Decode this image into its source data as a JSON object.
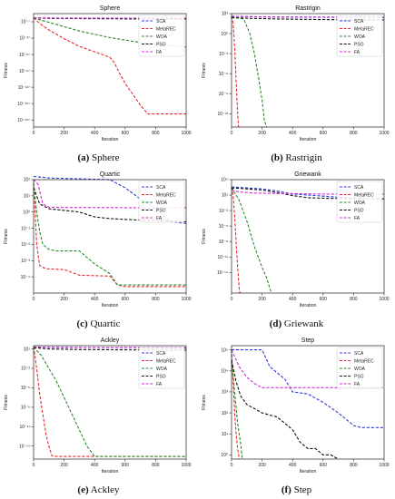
{
  "figure": {
    "panels": [
      {
        "id": "a",
        "letter": "(a)",
        "name": "Sphere"
      },
      {
        "id": "b",
        "letter": "(b)",
        "name": "Rastrigin"
      },
      {
        "id": "c",
        "letter": "(c)",
        "name": "Quartic"
      },
      {
        "id": "d",
        "letter": "(d)",
        "name": "Griewank"
      },
      {
        "id": "e",
        "letter": "(e)",
        "name": "Ackley"
      },
      {
        "id": "f",
        "letter": "(f)",
        "name": "Step"
      }
    ]
  },
  "colors": {
    "SCA": "#2b3bd9",
    "MetaREC": "#e8282b",
    "WOA": "#2a8a2a",
    "PSO": "#111111",
    "FA": "#d22bd2"
  },
  "chart_data": [
    {
      "type": "line",
      "title": "Sphere",
      "xlabel": "Iteration",
      "ylabel": "Fitness",
      "xlim": [
        0,
        1000
      ],
      "log_y": true,
      "ylim_log10": [
        -200,
        8
      ],
      "x_ticks": [
        0,
        200,
        400,
        600,
        800,
        1000
      ],
      "y_ticks": [
        {
          "v": -7,
          "label": "10⁻⁷"
        },
        {
          "v": -37,
          "label": "10⁻³⁷"
        },
        {
          "v": -67,
          "label": "10⁻⁶⁷"
        },
        {
          "v": -97,
          "label": "10⁻⁹⁷"
        },
        {
          "v": -127,
          "label": "10⁻¹²⁷"
        },
        {
          "v": -157,
          "label": "10⁻¹⁵⁷"
        },
        {
          "v": -187,
          "label": "10⁻¹⁸⁷"
        }
      ],
      "legend": "top-right",
      "grid": false,
      "series": [
        {
          "name": "SCA",
          "x": [
            0,
            100,
            300,
            500,
            700,
            1000
          ],
          "y": [
            0,
            -0.3,
            -0.6,
            -1,
            -1.3,
            -1.6
          ]
        },
        {
          "name": "MetaREC",
          "x": [
            0,
            40,
            100,
            200,
            300,
            400,
            450,
            500,
            530,
            560,
            600,
            650,
            700,
            750,
            780,
            1000
          ],
          "y": [
            0,
            -10,
            -22,
            -38,
            -52,
            -62,
            -67,
            -72,
            -82,
            -100,
            -120,
            -140,
            -160,
            -176,
            -176,
            -176
          ]
        },
        {
          "name": "WOA",
          "x": [
            0,
            50,
            150,
            300,
            500,
            700,
            900,
            1000
          ],
          "y": [
            0,
            -4,
            -12,
            -24,
            -36,
            -45,
            -51,
            -53
          ]
        },
        {
          "name": "PSO",
          "x": [
            0,
            100,
            300,
            600,
            1000
          ],
          "y": [
            0,
            -0.8,
            -1.2,
            -1.6,
            -2
          ]
        },
        {
          "name": "FA",
          "x": [
            0,
            200,
            500,
            1000
          ],
          "y": [
            0,
            -0.2,
            -0.3,
            -0.4
          ]
        }
      ]
    },
    {
      "type": "line",
      "title": "Rastrigin",
      "xlabel": "Iteration",
      "ylabel": "Fitness",
      "xlim": [
        0,
        1000
      ],
      "log_y": true,
      "ylim_log10": [
        -14,
        3
      ],
      "x_ticks": [
        0,
        200,
        400,
        600,
        800,
        1000
      ],
      "y_ticks": [
        {
          "v": 3,
          "label": "10³"
        },
        {
          "v": 0,
          "label": "10⁰"
        },
        {
          "v": -3,
          "label": "10⁻³"
        },
        {
          "v": -6,
          "label": "10⁻⁶"
        },
        {
          "v": -9,
          "label": "10⁻⁹"
        },
        {
          "v": -12,
          "label": "10⁻¹²"
        }
      ],
      "legend": "top-right",
      "grid": false,
      "series": [
        {
          "name": "SCA",
          "x": [
            0,
            100,
            300,
            600,
            1000
          ],
          "y": [
            2.6,
            2.55,
            2.5,
            2.45,
            2.4
          ]
        },
        {
          "name": "MetaREC",
          "x": [
            0,
            10,
            20,
            30,
            40,
            45,
            50
          ],
          "y": [
            2.6,
            1.5,
            -2,
            -7,
            -12,
            -14,
            -14
          ]
        },
        {
          "name": "WOA",
          "x": [
            0,
            80,
            120,
            150,
            180,
            200,
            215,
            230
          ],
          "y": [
            2.5,
            2.2,
            0,
            -3,
            -7,
            -10,
            -13,
            -14
          ]
        },
        {
          "name": "PSO",
          "x": [
            0,
            100,
            300,
            600,
            1000
          ],
          "y": [
            2.4,
            2.3,
            2.2,
            2.1,
            2.05
          ]
        },
        {
          "name": "FA",
          "x": [
            0,
            200,
            600,
            1000
          ],
          "y": [
            2.6,
            2.5,
            2.48,
            2.45
          ]
        }
      ]
    },
    {
      "type": "line",
      "title": "Quartic",
      "xlabel": "Iteration",
      "ylabel": "Fitness",
      "xlim": [
        0,
        1000
      ],
      "log_y": true,
      "ylim_log10": [
        -5,
        2
      ],
      "x_ticks": [
        0,
        200,
        400,
        600,
        800,
        1000
      ],
      "y_ticks": [
        {
          "v": 2,
          "label": "10²"
        },
        {
          "v": 1,
          "label": "10¹"
        },
        {
          "v": 0,
          "label": "10⁰"
        },
        {
          "v": -1,
          "label": "10⁻¹"
        },
        {
          "v": -2,
          "label": "10⁻²"
        },
        {
          "v": -3,
          "label": "10⁻³"
        },
        {
          "v": -4,
          "label": "10⁻⁴"
        }
      ],
      "legend": "top-right",
      "grid": false,
      "series": [
        {
          "name": "SCA",
          "x": [
            0,
            100,
            300,
            500,
            600,
            700,
            800,
            900,
            1000
          ],
          "y": [
            2.2,
            2.1,
            2.05,
            2.0,
            1.5,
            0.8,
            0.2,
            -0.6,
            -0.7
          ]
        },
        {
          "name": "MetaREC",
          "x": [
            0,
            10,
            20,
            40,
            80,
            200,
            300,
            500,
            550,
            600,
            1000
          ],
          "y": [
            1.8,
            0,
            -2,
            -3.3,
            -3.5,
            -3.55,
            -3.9,
            -3.95,
            -4.5,
            -4.6,
            -4.6
          ]
        },
        {
          "name": "WOA",
          "x": [
            0,
            20,
            40,
            60,
            100,
            150,
            300,
            400,
            500,
            550,
            1000
          ],
          "y": [
            1.8,
            0,
            -1.2,
            -2,
            -2.3,
            -2.4,
            -2.4,
            -3.2,
            -3.8,
            -4.5,
            -4.5
          ]
        },
        {
          "name": "PSO",
          "x": [
            0,
            20,
            40,
            100,
            200,
            300,
            400,
            500,
            600,
            700,
            800,
            900,
            1000
          ],
          "y": [
            1.5,
            1,
            0.5,
            0.2,
            0.1,
            0,
            -0.3,
            -0.4,
            -0.45,
            -0.5,
            -0.5,
            -0.55,
            -0.6
          ]
        },
        {
          "name": "FA",
          "x": [
            0,
            30,
            60,
            100,
            200,
            400,
            600,
            800,
            1000
          ],
          "y": [
            2.0,
            1.7,
            0.5,
            0.3,
            0.28,
            0.28,
            0.27,
            0.27,
            0.27
          ]
        }
      ]
    },
    {
      "type": "line",
      "title": "Griewank",
      "xlabel": "Iteration",
      "ylabel": "Fitness",
      "xlim": [
        0,
        1000
      ],
      "log_y": true,
      "ylim_log10": [
        -18,
        4
      ],
      "x_ticks": [
        0,
        200,
        400,
        600,
        800,
        1000
      ],
      "y_ticks": [
        {
          "v": 4,
          "label": "10⁴"
        },
        {
          "v": 1,
          "label": "10¹"
        },
        {
          "v": -2,
          "label": "10⁻²"
        },
        {
          "v": -5,
          "label": "10⁻⁵"
        },
        {
          "v": -8,
          "label": "10⁻⁸"
        },
        {
          "v": -11,
          "label": "10⁻¹¹"
        },
        {
          "v": -14,
          "label": "10⁻¹⁴"
        }
      ],
      "legend": "top-right",
      "grid": false,
      "series": [
        {
          "name": "SCA",
          "x": [
            0,
            100,
            200,
            300,
            400,
            500,
            600,
            700,
            800,
            1000
          ],
          "y": [
            2.6,
            2.4,
            2.2,
            1.8,
            1.2,
            1.0,
            0.8,
            0.6,
            0.4,
            0.2
          ]
        },
        {
          "name": "MetaREC",
          "x": [
            0,
            10,
            20,
            30,
            40,
            50,
            55
          ],
          "y": [
            2.5,
            1,
            -3,
            -8,
            -13,
            -17,
            -18
          ]
        },
        {
          "name": "WOA",
          "x": [
            0,
            50,
            100,
            150,
            200,
            230,
            250,
            260
          ],
          "y": [
            2.5,
            0,
            -4,
            -9,
            -13,
            -15,
            -17,
            -18
          ]
        },
        {
          "name": "PSO",
          "x": [
            0,
            100,
            200,
            300,
            400,
            500,
            600,
            800,
            1000
          ],
          "y": [
            2.4,
            2.2,
            2.0,
            1.5,
            0.9,
            0.5,
            0.4,
            0.3,
            0.3
          ]
        },
        {
          "name": "FA",
          "x": [
            0,
            50,
            150,
            300,
            400,
            600,
            800,
            1000
          ],
          "y": [
            2.0,
            1.6,
            1.4,
            1.3,
            1.3,
            1.2,
            1.2,
            1.2
          ]
        }
      ]
    },
    {
      "type": "line",
      "title": "Ackley",
      "xlabel": "Iteration",
      "ylabel": "Fitness",
      "xlim": [
        0,
        1000
      ],
      "log_y": true,
      "ylim_log10": [
        -16,
        1.5
      ],
      "x_ticks": [
        0,
        200,
        400,
        600,
        800,
        1000
      ],
      "y_ticks": [
        {
          "v": 1,
          "label": "10¹"
        },
        {
          "v": -2,
          "label": "10⁻²"
        },
        {
          "v": -5,
          "label": "10⁻⁵"
        },
        {
          "v": -8,
          "label": "10⁻⁸"
        },
        {
          "v": -11,
          "label": "10⁻¹¹"
        },
        {
          "v": -14,
          "label": "10⁻¹⁴"
        }
      ],
      "legend": "top-right",
      "grid": false,
      "series": [
        {
          "name": "SCA",
          "x": [
            0,
            200,
            400,
            600,
            800,
            1000
          ],
          "y": [
            1.3,
            1.25,
            1.2,
            1.2,
            1.15,
            1.1
          ]
        },
        {
          "name": "MetaREC",
          "x": [
            0,
            20,
            40,
            60,
            80,
            100,
            120,
            150,
            1000
          ],
          "y": [
            1.3,
            -2,
            -6,
            -9,
            -12,
            -14,
            -15.5,
            -15.6,
            -15.6
          ]
        },
        {
          "name": "WOA",
          "x": [
            0,
            50,
            100,
            150,
            200,
            250,
            300,
            350,
            400,
            1000
          ],
          "y": [
            1.3,
            0,
            -2,
            -4,
            -6.5,
            -9,
            -11.5,
            -14,
            -15.6,
            -15.6
          ]
        },
        {
          "name": "PSO",
          "x": [
            0,
            100,
            300,
            600,
            1000
          ],
          "y": [
            1.2,
            1.0,
            0.9,
            0.85,
            0.8
          ]
        },
        {
          "name": "FA",
          "x": [
            0,
            200,
            600,
            1000
          ],
          "y": [
            1.3,
            1.2,
            1.2,
            1.2
          ]
        }
      ]
    },
    {
      "type": "line",
      "title": "Step",
      "xlabel": "Iteration",
      "ylabel": "Fitness",
      "xlim": [
        0,
        1000
      ],
      "log_y": true,
      "ylim_log10": [
        -0.2,
        5.2
      ],
      "x_ticks": [
        0,
        200,
        400,
        600,
        800,
        1000
      ],
      "y_ticks": [
        {
          "v": 5,
          "label": "10⁵"
        },
        {
          "v": 4,
          "label": "10⁴"
        },
        {
          "v": 3,
          "label": "10³"
        },
        {
          "v": 2,
          "label": "10²"
        },
        {
          "v": 1,
          "label": "10¹"
        },
        {
          "v": 0,
          "label": "10⁰"
        }
      ],
      "legend": "top-right",
      "grid": false,
      "series": [
        {
          "name": "SCA",
          "x": [
            0,
            200,
            250,
            350,
            400,
            500,
            600,
            700,
            800,
            850,
            1000
          ],
          "y": [
            5,
            5,
            4.2,
            3.6,
            3.0,
            2.9,
            2.5,
            2.0,
            1.4,
            1.3,
            1.3
          ]
        },
        {
          "name": "MetaREC",
          "x": [
            0,
            10,
            20,
            30,
            40,
            50
          ],
          "y": [
            5,
            3.5,
            2,
            1,
            0.3,
            -0.2
          ]
        },
        {
          "name": "WOA",
          "x": [
            0,
            20,
            40,
            60,
            70
          ],
          "y": [
            4.5,
            3,
            1.5,
            0.5,
            -0.2
          ]
        },
        {
          "name": "PSO",
          "x": [
            0,
            30,
            60,
            100,
            150,
            200,
            300,
            400,
            450,
            500,
            550,
            600,
            650,
            700
          ],
          "y": [
            4.5,
            3.5,
            2.8,
            2.4,
            2.2,
            2.0,
            1.8,
            1.2,
            0.6,
            0.3,
            0.3,
            0,
            0,
            -0.2
          ]
        },
        {
          "name": "FA",
          "x": [
            0,
            50,
            100,
            150,
            200,
            300,
            500,
            1000
          ],
          "y": [
            5,
            4.2,
            3.7,
            3.4,
            3.2,
            3.2,
            3.2,
            3.2
          ]
        }
      ]
    }
  ]
}
